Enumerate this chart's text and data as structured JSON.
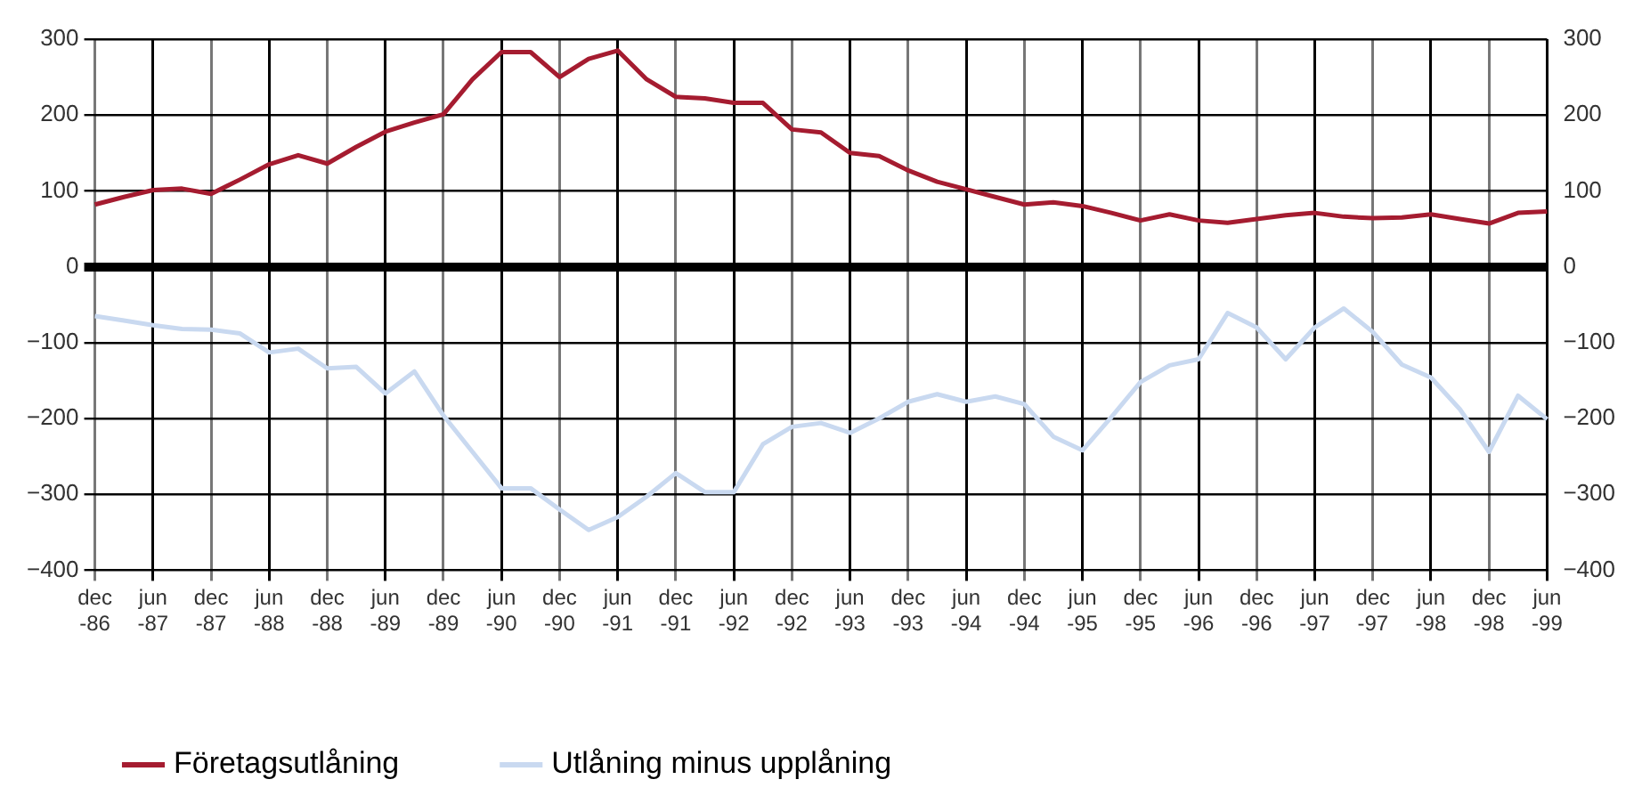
{
  "chart_data": {
    "type": "line",
    "categories": [
      "dec -86",
      null,
      "jun -87",
      null,
      "dec -87",
      null,
      "jun -88",
      null,
      "dec -88",
      null,
      "jun -89",
      null,
      "dec -89",
      null,
      "jun -90",
      null,
      "dec -90",
      null,
      "jun -91",
      null,
      "dec -91",
      null,
      "jun -92",
      null,
      "dec -92",
      null,
      "jun -93",
      null,
      "dec -93",
      null,
      "jun -94",
      null,
      "dec -94",
      null,
      "jun -95",
      null,
      "dec -95",
      null,
      "jun -96",
      null,
      "dec -96",
      null,
      "jun -97",
      null,
      "dec -97",
      null,
      "jun -98",
      null,
      "dec -98",
      null,
      "jun -99"
    ],
    "series": [
      {
        "name": "Företagsutlåning",
        "color": "#a51c30",
        "values": [
          82,
          92,
          101,
          103,
          96,
          115,
          135,
          147,
          136,
          158,
          178,
          190,
          201,
          247,
          283,
          283,
          250,
          274,
          285,
          247,
          224,
          222,
          216,
          216,
          181,
          177,
          150,
          146,
          127,
          112,
          102,
          92,
          82,
          85,
          80,
          71,
          61,
          69,
          61,
          58,
          63,
          68,
          71,
          66,
          64,
          65,
          69,
          63,
          57,
          71,
          73
        ]
      },
      {
        "name": "Utlåning minus upplåning",
        "color": "#c9d9f0",
        "values": [
          -65,
          -71,
          -77,
          -82,
          -83,
          -88,
          -113,
          -108,
          -134,
          -132,
          -167,
          -138,
          -196,
          -244,
          -292,
          -292,
          -320,
          -347,
          -330,
          -303,
          -272,
          -297,
          -297,
          -234,
          -211,
          -206,
          -219,
          -200,
          -178,
          -168,
          -178,
          -171,
          -181,
          -224,
          -242,
          -198,
          -152,
          -130,
          -122,
          -61,
          -80,
          -122,
          -80,
          -55,
          -86,
          -129,
          -146,
          -188,
          -244,
          -170,
          -201
        ]
      }
    ],
    "ylim": [
      -400,
      300
    ],
    "yticks": [
      {
        "value": -400,
        "label": "−400"
      },
      {
        "value": -300,
        "label": "−300"
      },
      {
        "value": -200,
        "label": "−200"
      },
      {
        "value": -100,
        "label": "−100"
      },
      0,
      100,
      200,
      300
    ],
    "y2lim": [
      -400,
      300
    ],
    "y2ticks": [
      {
        "value": -400,
        "label": "−400"
      },
      {
        "value": -300,
        "label": "−300"
      },
      {
        "value": -200,
        "label": "−200"
      },
      {
        "value": -100,
        "label": "−100"
      },
      0,
      100,
      200,
      300
    ],
    "grid": true,
    "legend": "bottom",
    "marker": "none",
    "line_style": "solid"
  }
}
